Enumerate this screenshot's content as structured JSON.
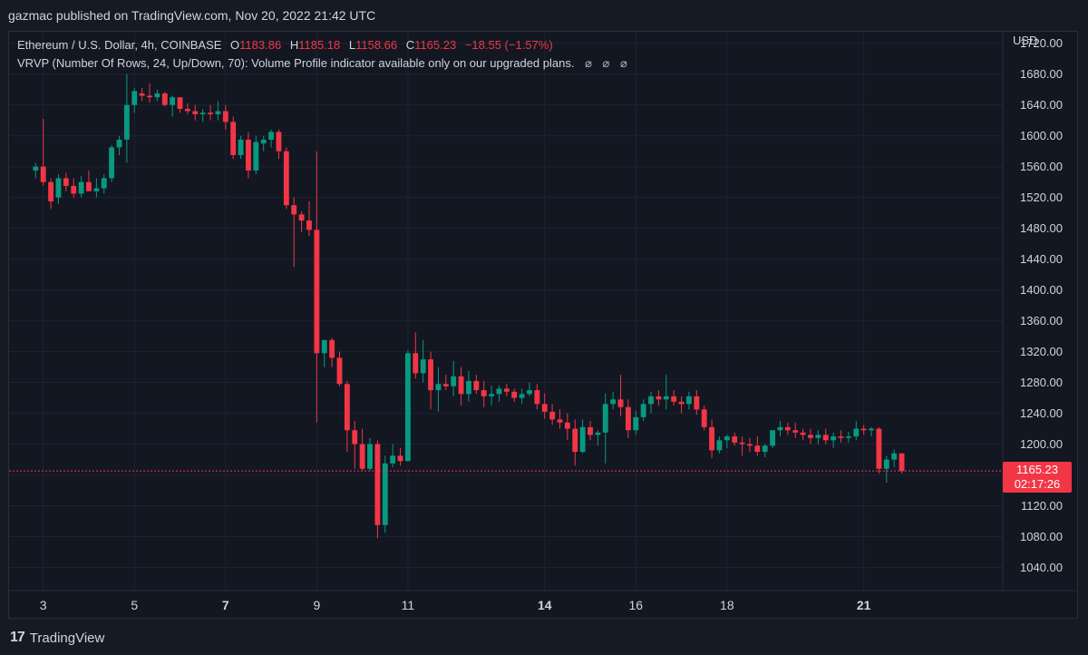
{
  "header": {
    "published_text": "gazmac published on TradingView.com, Nov 20, 2022 21:42 UTC"
  },
  "legend": {
    "symbol": "Ethereum / U.S. Dollar, 4h, COINBASE",
    "open_label": "O",
    "open": "1183.86",
    "high_label": "H",
    "high": "1185.18",
    "low_label": "L",
    "low": "1158.66",
    "close_label": "C",
    "close": "1165.23",
    "change": "−18.55 (−1.57%)",
    "indicator": "VRVP (Number Of Rows, 24, Up/Down, 70): Volume Profile indicator available only on our upgraded plans.",
    "indicator_icons": [
      "⌀",
      "⌀",
      "⌀"
    ]
  },
  "price_axis": {
    "currency": "USD"
  },
  "last_price": {
    "value": "1165.23",
    "countdown": "02:17:26"
  },
  "footer": {
    "logo_mark": "17",
    "brand": "TradingView"
  },
  "colors": {
    "up": "#089981",
    "down": "#f23645",
    "grid": "#1f2330",
    "text": "#d1d4dc"
  },
  "chart_data": {
    "type": "candlestick",
    "ylim": [
      1010,
      1735
    ],
    "y_ticks": [
      1040,
      1080,
      1120,
      1160,
      1200,
      1240,
      1280,
      1320,
      1360,
      1400,
      1440,
      1480,
      1520,
      1560,
      1600,
      1640,
      1680,
      1720
    ],
    "x_ticks": [
      {
        "label": "3",
        "x": 1,
        "bold": false
      },
      {
        "label": "5",
        "x": 13,
        "bold": false
      },
      {
        "label": "7",
        "x": 25,
        "bold": true
      },
      {
        "label": "9",
        "x": 37,
        "bold": false
      },
      {
        "label": "11",
        "x": 49,
        "bold": false
      },
      {
        "label": "14",
        "x": 67,
        "bold": true
      },
      {
        "label": "16",
        "x": 79,
        "bold": false
      },
      {
        "label": "18",
        "x": 91,
        "bold": false
      },
      {
        "label": "21",
        "x": 109,
        "bold": true
      }
    ],
    "xlim": [
      -3.5,
      127.3
    ],
    "candles": [
      [
        1555,
        1565,
        1545,
        1560
      ],
      [
        1560,
        1622,
        1535,
        1540
      ],
      [
        1540,
        1545,
        1505,
        1515
      ],
      [
        1520,
        1550,
        1512,
        1545
      ],
      [
        1545,
        1552,
        1528,
        1535
      ],
      [
        1535,
        1545,
        1520,
        1525
      ],
      [
        1525,
        1548,
        1520,
        1540
      ],
      [
        1540,
        1555,
        1530,
        1528
      ],
      [
        1528,
        1545,
        1520,
        1532
      ],
      [
        1532,
        1550,
        1525,
        1545
      ],
      [
        1545,
        1588,
        1540,
        1585
      ],
      [
        1585,
        1600,
        1575,
        1595
      ],
      [
        1595,
        1680,
        1565,
        1640
      ],
      [
        1640,
        1662,
        1630,
        1658
      ],
      [
        1655,
        1662,
        1645,
        1652
      ],
      [
        1652,
        1668,
        1643,
        1650
      ],
      [
        1650,
        1660,
        1645,
        1655
      ],
      [
        1655,
        1657,
        1638,
        1640
      ],
      [
        1640,
        1652,
        1625,
        1650
      ],
      [
        1650,
        1650,
        1630,
        1635
      ],
      [
        1635,
        1642,
        1628,
        1632
      ],
      [
        1632,
        1640,
        1620,
        1628
      ],
      [
        1628,
        1635,
        1618,
        1630
      ],
      [
        1630,
        1640,
        1620,
        1628
      ],
      [
        1628,
        1645,
        1620,
        1632
      ],
      [
        1632,
        1640,
        1608,
        1618
      ],
      [
        1618,
        1625,
        1570,
        1575
      ],
      [
        1575,
        1600,
        1570,
        1595
      ],
      [
        1595,
        1605,
        1545,
        1555
      ],
      [
        1555,
        1600,
        1550,
        1592
      ],
      [
        1590,
        1600,
        1580,
        1595
      ],
      [
        1595,
        1608,
        1585,
        1605
      ],
      [
        1605,
        1608,
        1570,
        1580
      ],
      [
        1580,
        1585,
        1505,
        1510
      ],
      [
        1510,
        1520,
        1430,
        1498
      ],
      [
        1498,
        1502,
        1475,
        1490
      ],
      [
        1490,
        1515,
        1470,
        1478
      ],
      [
        1478,
        1580,
        1228,
        1318
      ],
      [
        1318,
        1335,
        1300,
        1335
      ],
      [
        1335,
        1338,
        1300,
        1312
      ],
      [
        1312,
        1320,
        1275,
        1278
      ],
      [
        1278,
        1282,
        1190,
        1218
      ],
      [
        1218,
        1230,
        1168,
        1200
      ],
      [
        1200,
        1220,
        1165,
        1168
      ],
      [
        1168,
        1208,
        1165,
        1200
      ],
      [
        1200,
        1205,
        1078,
        1095
      ],
      [
        1095,
        1185,
        1085,
        1175
      ],
      [
        1175,
        1200,
        1170,
        1185
      ],
      [
        1185,
        1195,
        1172,
        1178
      ],
      [
        1178,
        1322,
        1178,
        1318
      ],
      [
        1318,
        1345,
        1285,
        1292
      ],
      [
        1292,
        1335,
        1280,
        1310
      ],
      [
        1310,
        1320,
        1245,
        1270
      ],
      [
        1270,
        1300,
        1242,
        1278
      ],
      [
        1278,
        1290,
        1270,
        1275
      ],
      [
        1275,
        1308,
        1262,
        1288
      ],
      [
        1288,
        1300,
        1250,
        1265
      ],
      [
        1265,
        1295,
        1255,
        1282
      ],
      [
        1282,
        1290,
        1265,
        1270
      ],
      [
        1270,
        1282,
        1248,
        1262
      ],
      [
        1262,
        1276,
        1250,
        1265
      ],
      [
        1265,
        1276,
        1255,
        1272
      ],
      [
        1272,
        1278,
        1262,
        1268
      ],
      [
        1268,
        1272,
        1255,
        1260
      ],
      [
        1260,
        1272,
        1252,
        1265
      ],
      [
        1265,
        1280,
        1262,
        1270
      ],
      [
        1270,
        1278,
        1245,
        1252
      ],
      [
        1252,
        1266,
        1233,
        1242
      ],
      [
        1242,
        1252,
        1225,
        1232
      ],
      [
        1232,
        1245,
        1220,
        1228
      ],
      [
        1228,
        1240,
        1205,
        1220
      ],
      [
        1220,
        1232,
        1172,
        1190
      ],
      [
        1190,
        1232,
        1188,
        1222
      ],
      [
        1222,
        1230,
        1205,
        1212
      ],
      [
        1212,
        1218,
        1198,
        1215
      ],
      [
        1215,
        1266,
        1175,
        1252
      ],
      [
        1252,
        1268,
        1245,
        1258
      ],
      [
        1258,
        1290,
        1236,
        1248
      ],
      [
        1248,
        1258,
        1208,
        1218
      ],
      [
        1218,
        1243,
        1212,
        1235
      ],
      [
        1235,
        1258,
        1230,
        1252
      ],
      [
        1252,
        1268,
        1240,
        1262
      ],
      [
        1262,
        1270,
        1250,
        1258
      ],
      [
        1258,
        1290,
        1245,
        1262
      ],
      [
        1262,
        1270,
        1250,
        1255
      ],
      [
        1255,
        1262,
        1240,
        1252
      ],
      [
        1252,
        1268,
        1245,
        1262
      ],
      [
        1262,
        1270,
        1238,
        1245
      ],
      [
        1245,
        1250,
        1218,
        1222
      ],
      [
        1222,
        1232,
        1182,
        1192
      ],
      [
        1192,
        1210,
        1188,
        1205
      ],
      [
        1205,
        1212,
        1195,
        1210
      ],
      [
        1210,
        1215,
        1198,
        1202
      ],
      [
        1202,
        1210,
        1185,
        1200
      ],
      [
        1200,
        1208,
        1190,
        1198
      ],
      [
        1198,
        1210,
        1185,
        1190
      ],
      [
        1190,
        1200,
        1183,
        1198
      ],
      [
        1198,
        1215,
        1195,
        1218
      ],
      [
        1218,
        1230,
        1210,
        1222
      ],
      [
        1222,
        1228,
        1212,
        1218
      ],
      [
        1218,
        1228,
        1208,
        1215
      ],
      [
        1215,
        1220,
        1205,
        1212
      ],
      [
        1212,
        1220,
        1200,
        1208
      ],
      [
        1208,
        1218,
        1200,
        1212
      ],
      [
        1212,
        1220,
        1200,
        1205
      ],
      [
        1205,
        1215,
        1195,
        1210
      ],
      [
        1210,
        1218,
        1202,
        1208
      ],
      [
        1208,
        1216,
        1202,
        1210
      ],
      [
        1210,
        1230,
        1205,
        1220
      ],
      [
        1220,
        1225,
        1212,
        1218
      ],
      [
        1218,
        1222,
        1210,
        1220
      ],
      [
        1220,
        1222,
        1162,
        1168
      ],
      [
        1168,
        1185,
        1150,
        1180
      ],
      [
        1180,
        1193,
        1170,
        1188
      ],
      [
        1188,
        1188,
        1162,
        1165
      ]
    ]
  }
}
